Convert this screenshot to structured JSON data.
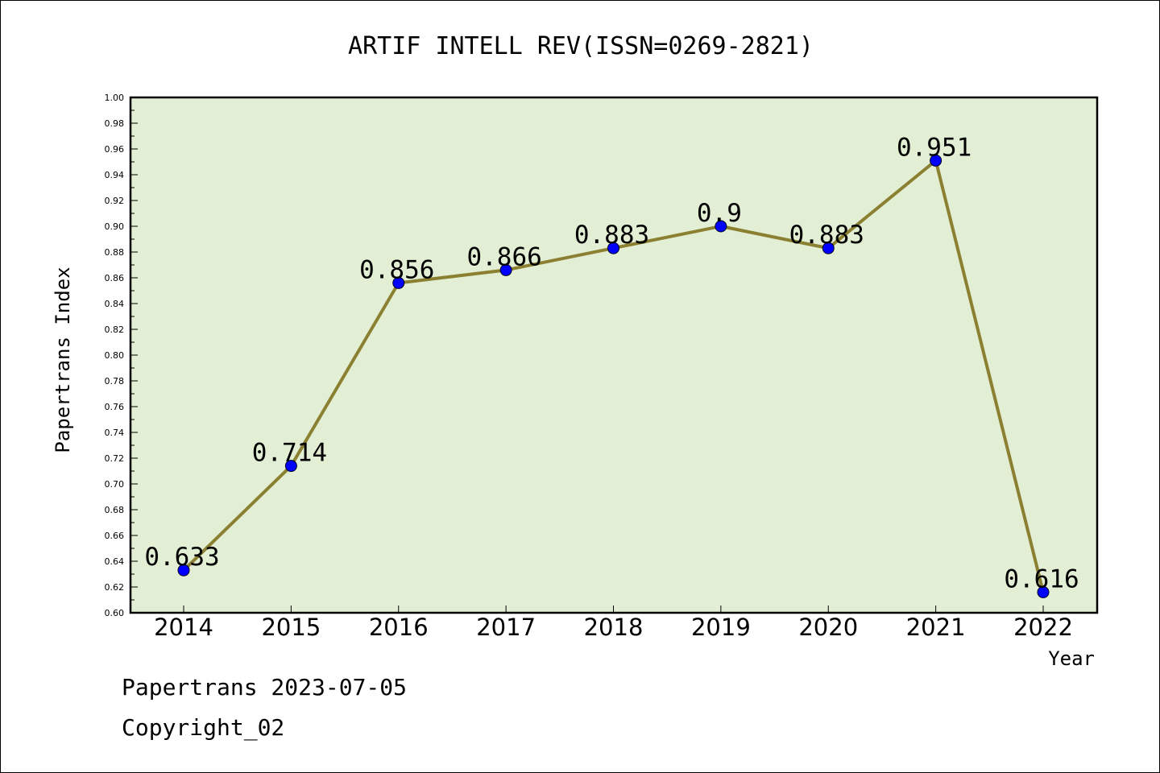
{
  "chart_data": {
    "type": "line",
    "title": "ARTIF INTELL REV(ISSN=0269-2821)",
    "xlabel": "Year",
    "ylabel": "Papertrans Index",
    "ylim": [
      0.6,
      1.0
    ],
    "yticks": [
      "0.60",
      "0.62",
      "0.64",
      "0.66",
      "0.68",
      "0.70",
      "0.72",
      "0.74",
      "0.76",
      "0.78",
      "0.80",
      "0.82",
      "0.84",
      "0.86",
      "0.88",
      "0.90",
      "0.92",
      "0.94",
      "0.96",
      "0.98",
      "1.00"
    ],
    "categories": [
      "2014",
      "2015",
      "2016",
      "2017",
      "2018",
      "2019",
      "2020",
      "2021",
      "2022"
    ],
    "values": [
      0.633,
      0.714,
      0.856,
      0.866,
      0.883,
      0.9,
      0.883,
      0.951,
      0.616
    ],
    "data_labels": [
      "0.633",
      "0.714",
      "0.856",
      "0.866",
      "0.883",
      "0.9",
      "0.883",
      "0.951",
      "0.616"
    ],
    "grid": false,
    "colors": {
      "plot_background": "#e2efd4",
      "line": "#8b8031",
      "marker": "#0000ff"
    }
  },
  "footer": {
    "line1": "Papertrans 2023-07-05",
    "line2": "Copyright_02"
  }
}
